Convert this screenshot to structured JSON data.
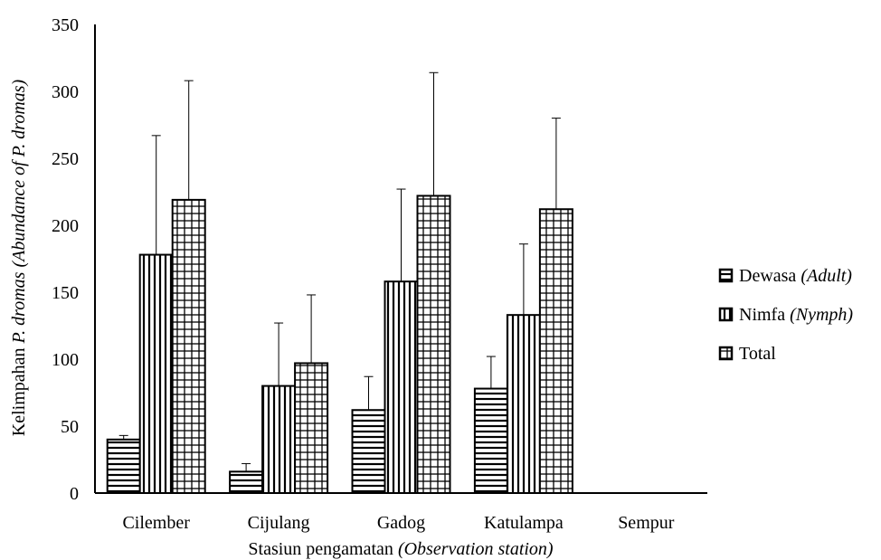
{
  "chart_data": {
    "type": "bar",
    "categories": [
      "Cilember",
      "Cijulang",
      "Gadog",
      "Katulampa",
      "Sempur"
    ],
    "series": [
      {
        "name": "Dewasa (Adult)",
        "label": "Dewasa",
        "label_italic": "(Adult)",
        "pattern": "horizontal",
        "values": [
          40,
          16,
          62,
          78,
          0
        ],
        "errors": [
          3,
          6,
          25,
          24,
          0
        ]
      },
      {
        "name": "Nimfa (Nymph)",
        "label": "Nimfa",
        "label_italic": "(Nymph)",
        "pattern": "vertical",
        "values": [
          178,
          80,
          158,
          133,
          0
        ],
        "errors": [
          89,
          47,
          69,
          53,
          0
        ]
      },
      {
        "name": "Total",
        "label": "Total",
        "label_italic": "",
        "pattern": "grid",
        "values": [
          219,
          97,
          222,
          212,
          0
        ],
        "errors": [
          89,
          51,
          92,
          68,
          0
        ]
      }
    ],
    "ylim": [
      0,
      350
    ],
    "yticks": [
      "0",
      "50",
      "100",
      "150",
      "200",
      "250",
      "300",
      "350"
    ],
    "xlabel": "Stasiun pengamatan",
    "xlabel_italic": "(Observation station)",
    "ylabel": "Kelimpahan",
    "ylabel_italic_1": "P. dromas",
    "ylabel_italic_2": "(Abundance of P. dromas)",
    "grid": false,
    "legend_position": "right"
  }
}
